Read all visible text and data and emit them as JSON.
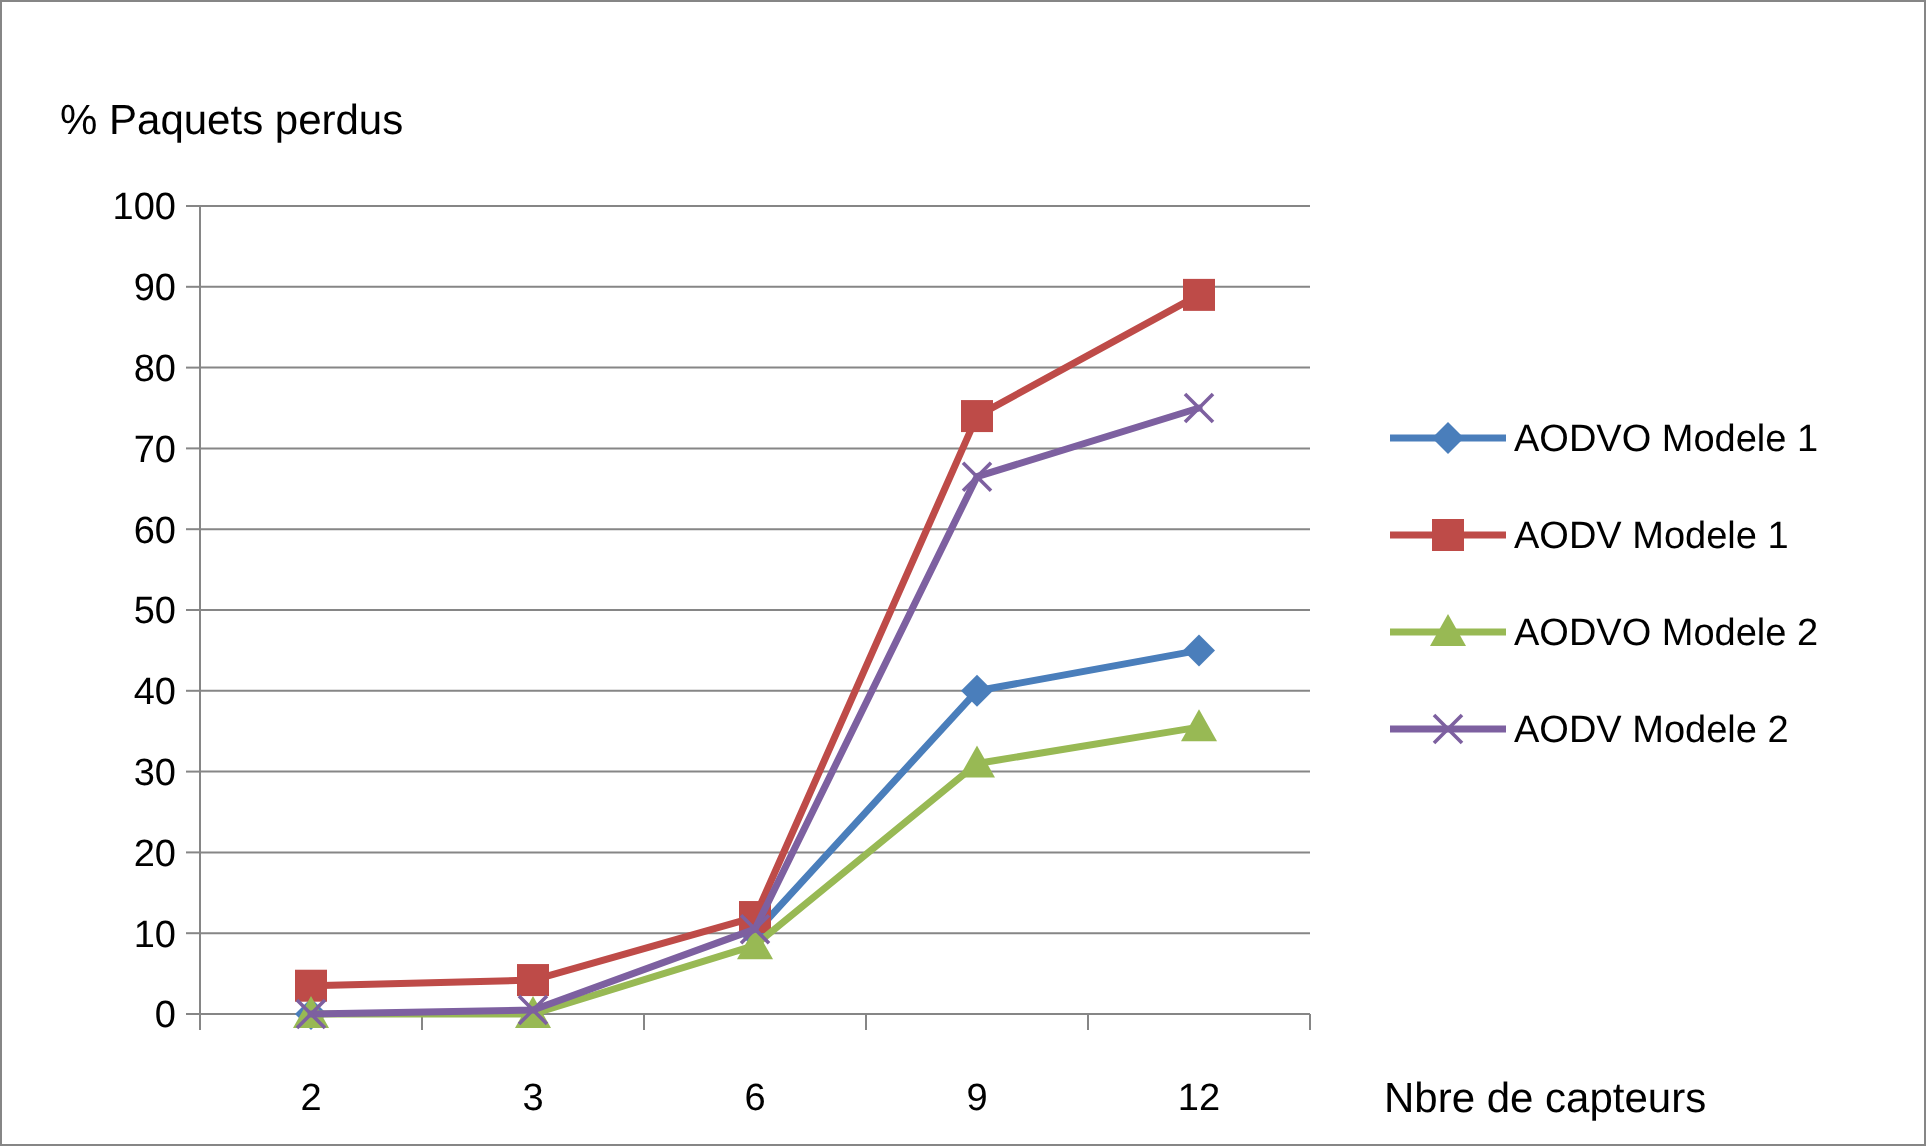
{
  "chart_data": {
    "type": "line",
    "ylabel": "% Paquets perdus",
    "xlabel": "Nbre de capteurs",
    "categories": [
      "2",
      "3",
      "6",
      "9",
      "12"
    ],
    "series": [
      {
        "name": "AODVO Modele 1",
        "color": "#4a7ebb",
        "marker": "diamond",
        "values": [
          0,
          null,
          10,
          40,
          45
        ]
      },
      {
        "name": "AODV Modele 1",
        "color": "#be4b48",
        "marker": "square",
        "values": [
          3.5,
          4.2,
          12,
          74,
          89
        ]
      },
      {
        "name": "AODVO Modele 2",
        "color": "#98b954",
        "marker": "triangle",
        "values": [
          0,
          0,
          8.5,
          31,
          35.5
        ]
      },
      {
        "name": "AODV Modele 2",
        "color": "#7d60a0",
        "marker": "cross",
        "values": [
          0,
          0.5,
          10.5,
          66.5,
          75
        ]
      }
    ],
    "ylim": [
      0,
      100
    ],
    "yticks": [
      0,
      10,
      20,
      30,
      40,
      50,
      60,
      70,
      80,
      90,
      100
    ],
    "grid": "y",
    "legend": "right",
    "line_style": "solid"
  }
}
